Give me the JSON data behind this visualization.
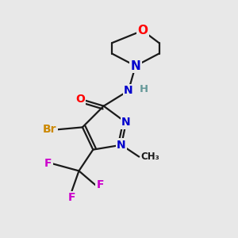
{
  "bg_color": "#e8e8e8",
  "line_color": "#1a1a1a",
  "bond_width": 1.6,
  "atom_colors": {
    "O": "#ff0000",
    "N": "#0000cc",
    "Br": "#cc8800",
    "F": "#cc00cc",
    "H": "#669999",
    "C": "#1a1a1a"
  },
  "font_size_main": 10,
  "font_size_small": 8.5
}
